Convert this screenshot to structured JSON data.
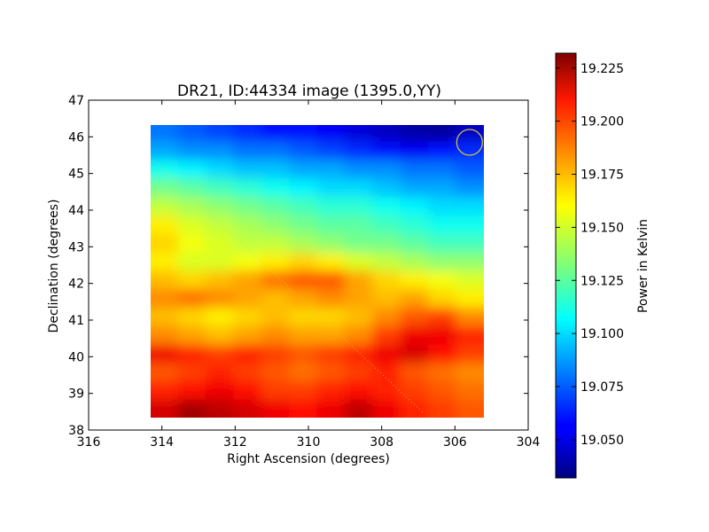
{
  "chart_data": {
    "type": "heatmap",
    "title": "DR21, ID:44334 image (1395.0,YY)",
    "xlabel": "Right Ascension (degrees)",
    "ylabel": "Declination (degrees)",
    "xlim": [
      316,
      304
    ],
    "ylim": [
      38,
      47
    ],
    "x_ticks": [
      316,
      314,
      312,
      310,
      308,
      306,
      304
    ],
    "y_ticks": [
      38,
      39,
      40,
      41,
      42,
      43,
      44,
      45,
      46,
      47
    ],
    "data_extent": {
      "ra": [
        314.3,
        305.2
      ],
      "dec": [
        38.3,
        46.35
      ]
    },
    "colorbar": {
      "label": "Power in Kelvin",
      "range": [
        19.032,
        19.232
      ],
      "ticks": [
        "19.050",
        "19.075",
        "19.100",
        "19.125",
        "19.150",
        "19.175",
        "19.200",
        "19.225"
      ],
      "colormap": "jet"
    },
    "grid": false,
    "beam_circle": {
      "ra": 305.6,
      "dec": 45.85,
      "color": "#d8c040"
    },
    "rows_dec_top_to_bottom": [
      [
        19.08,
        19.075,
        19.07,
        19.065,
        19.06,
        19.06,
        19.055,
        19.05,
        19.045,
        19.04,
        19.038,
        19.045
      ],
      [
        19.09,
        19.085,
        19.085,
        19.08,
        19.08,
        19.075,
        19.07,
        19.065,
        19.06,
        19.055,
        19.06,
        19.065
      ],
      [
        19.11,
        19.105,
        19.1,
        19.095,
        19.095,
        19.09,
        19.09,
        19.085,
        19.085,
        19.08,
        19.08,
        19.075
      ],
      [
        19.13,
        19.125,
        19.12,
        19.115,
        19.11,
        19.105,
        19.1,
        19.1,
        19.095,
        19.09,
        19.09,
        19.085
      ],
      [
        19.145,
        19.14,
        19.135,
        19.13,
        19.125,
        19.12,
        19.115,
        19.115,
        19.11,
        19.105,
        19.1,
        19.1
      ],
      [
        19.16,
        19.15,
        19.145,
        19.14,
        19.135,
        19.13,
        19.125,
        19.125,
        19.12,
        19.115,
        19.11,
        19.11
      ],
      [
        19.165,
        19.155,
        19.15,
        19.145,
        19.145,
        19.14,
        19.135,
        19.13,
        19.13,
        19.125,
        19.12,
        19.12
      ],
      [
        19.16,
        19.15,
        19.15,
        19.155,
        19.16,
        19.165,
        19.16,
        19.15,
        19.145,
        19.14,
        19.135,
        19.135
      ],
      [
        19.17,
        19.165,
        19.17,
        19.175,
        19.185,
        19.19,
        19.19,
        19.175,
        19.165,
        19.16,
        19.155,
        19.15
      ],
      [
        19.18,
        19.185,
        19.18,
        19.175,
        19.17,
        19.175,
        19.18,
        19.175,
        19.17,
        19.175,
        19.165,
        19.16
      ],
      [
        19.17,
        19.165,
        19.16,
        19.165,
        19.17,
        19.165,
        19.165,
        19.17,
        19.18,
        19.19,
        19.195,
        19.18
      ],
      [
        19.18,
        19.175,
        19.17,
        19.175,
        19.18,
        19.175,
        19.175,
        19.18,
        19.195,
        19.21,
        19.21,
        19.2
      ],
      [
        19.21,
        19.2,
        19.195,
        19.2,
        19.195,
        19.19,
        19.195,
        19.2,
        19.21,
        19.215,
        19.205,
        19.195
      ],
      [
        19.19,
        19.195,
        19.2,
        19.195,
        19.19,
        19.185,
        19.19,
        19.195,
        19.2,
        19.19,
        19.185,
        19.18
      ],
      [
        19.2,
        19.205,
        19.21,
        19.205,
        19.195,
        19.195,
        19.2,
        19.205,
        19.2,
        19.195,
        19.19,
        19.185
      ],
      [
        19.215,
        19.225,
        19.22,
        19.215,
        19.21,
        19.205,
        19.21,
        19.22,
        19.21,
        19.2,
        19.195,
        19.19
      ]
    ]
  }
}
